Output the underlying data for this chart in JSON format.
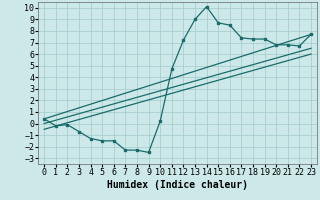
{
  "title": "",
  "xlabel": "Humidex (Indice chaleur)",
  "xlim": [
    -0.5,
    23.5
  ],
  "ylim": [
    -3.5,
    10.5
  ],
  "xticks": [
    0,
    1,
    2,
    3,
    4,
    5,
    6,
    7,
    8,
    9,
    10,
    11,
    12,
    13,
    14,
    15,
    16,
    17,
    18,
    19,
    20,
    21,
    22,
    23
  ],
  "yticks": [
    -3,
    -2,
    -1,
    0,
    1,
    2,
    3,
    4,
    5,
    6,
    7,
    8,
    9,
    10
  ],
  "bg_color": "#cce8e8",
  "grid_color": "#aacfcf",
  "line_color": "#1a6b6b",
  "curve1_x": [
    0,
    1,
    2,
    3,
    4,
    5,
    6,
    7,
    8,
    9,
    10,
    11,
    12,
    13,
    14,
    15,
    16,
    17,
    18,
    19,
    20,
    21,
    22,
    23
  ],
  "curve1_y": [
    0.4,
    -0.2,
    -0.1,
    -0.7,
    -1.3,
    -1.5,
    -1.5,
    -2.3,
    -2.3,
    -2.5,
    0.2,
    4.7,
    7.2,
    9.0,
    10.1,
    8.7,
    8.5,
    7.4,
    7.3,
    7.3,
    6.8,
    6.8,
    6.7,
    7.7
  ],
  "line1_x": [
    0,
    23
  ],
  "line1_y": [
    0.4,
    7.7
  ],
  "line2_x": [
    0,
    23
  ],
  "line2_y": [
    0.0,
    6.5
  ],
  "line3_x": [
    0,
    23
  ],
  "line3_y": [
    -0.5,
    6.0
  ],
  "xlabel_fontsize": 7,
  "tick_fontsize": 6
}
